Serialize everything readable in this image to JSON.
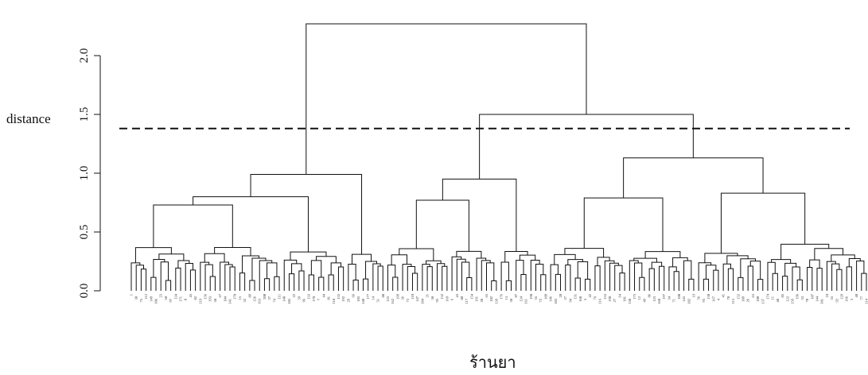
{
  "chart_data": {
    "type": "dendrogram",
    "ylabel": "distance",
    "xlabel": "ร้านยา",
    "ylim": [
      0,
      2.3
    ],
    "yticks": [
      {
        "value": 0,
        "label": "0.0"
      },
      {
        "value": 0.5,
        "label": "0.5"
      },
      {
        "value": 1.0,
        "label": "1.0"
      },
      {
        "value": 1.5,
        "label": "1.5"
      },
      {
        "value": 2.0,
        "label": "2.0"
      }
    ],
    "cut_height": 1.38,
    "cut_line_style": "dashed",
    "n_leaves": 150,
    "main_merges": [
      {
        "name": "root",
        "height": 2.27
      },
      {
        "name": "right-cluster",
        "height": 1.5
      },
      {
        "name": "left-cluster",
        "height": 0.99
      },
      {
        "name": "middle-cluster",
        "height": 0.95
      },
      {
        "name": "far-right-cluster",
        "height": 1.13
      }
    ]
  }
}
